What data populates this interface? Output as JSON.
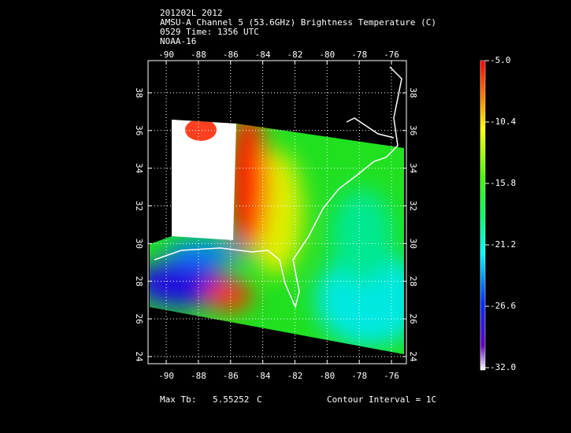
{
  "header": {
    "lines": [
      "201202L 2012",
      "AMSU-A Channel 5 (53.6GHz) Brightness Temperature (C)",
      "0529 Time: 1356 UTC",
      "NOAA-16"
    ]
  },
  "map": {
    "xlim": [
      -91.13,
      -75.07
    ],
    "ylim": [
      23.62,
      39.71
    ],
    "xticks": [
      -90,
      -88,
      -86,
      -84,
      -82,
      -80,
      -78,
      -76
    ],
    "yticks": [
      24,
      26,
      28,
      30,
      32,
      34,
      36,
      38
    ],
    "grid": true
  },
  "colorbar": {
    "lim": [
      -32,
      -5
    ],
    "ticks": [
      {
        "value": -5,
        "label": "-5.0"
      },
      {
        "value": -10.4,
        "label": "-10.4"
      },
      {
        "value": -15.8,
        "label": "-15.8"
      },
      {
        "value": -21.2,
        "label": "-21.2"
      },
      {
        "value": -26.6,
        "label": "-26.6"
      },
      {
        "value": -32,
        "label": "-32.0"
      }
    ]
  },
  "footer": {
    "max_label": "Max Tb:",
    "max_value": "5.55252",
    "unit": "C",
    "contour": "Contour Interval = 1C"
  }
}
